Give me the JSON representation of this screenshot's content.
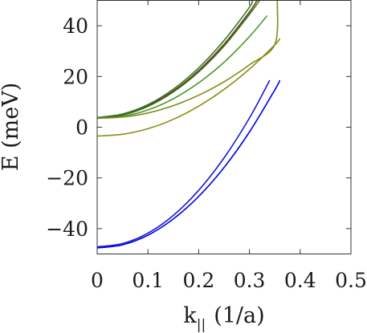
{
  "chart_data": {
    "type": "line",
    "xlabel": "k",
    "xlabel_sub": "||",
    "xlabel_unit": "(1/a)",
    "ylabel": "E (meV)",
    "xlim": [
      0,
      0.5
    ],
    "ylim": [
      -50,
      50
    ],
    "xticks": [
      "0",
      "0.1",
      "0.2",
      "0.3",
      "0.4",
      "0.5"
    ],
    "yticks": [
      "40",
      "20",
      "0",
      "−20",
      "−40"
    ],
    "ytick_values": [
      40,
      20,
      0,
      -20,
      -40
    ],
    "xtick_values": [
      0,
      0.1,
      0.2,
      0.3,
      0.4,
      0.5
    ],
    "grid": false,
    "series": [
      {
        "color": "#1a1acc",
        "x": [
          0,
          0.05,
          0.1,
          0.15,
          0.2,
          0.25,
          0.3,
          0.34
        ],
        "y": [
          -47.2,
          -45.9,
          -41.8,
          -34.8,
          -24.9,
          -12.1,
          3.6,
          18.5
        ]
      },
      {
        "color": "#0000ee",
        "x": [
          0,
          0.05,
          0.1,
          0.15,
          0.2,
          0.25,
          0.3,
          0.35,
          0.36
        ],
        "y": [
          -47.6,
          -46.4,
          -42.6,
          -36.2,
          -27.3,
          -15.9,
          -1.9,
          14.7,
          18.5
        ]
      },
      {
        "color": "#8c8c14",
        "x": [
          0,
          0.05,
          0.1,
          0.15,
          0.2,
          0.25,
          0.3,
          0.35,
          0.36
        ],
        "y": [
          -3.5,
          -2.8,
          -0.6,
          3.1,
          8.3,
          14.9,
          22.9,
          32.5,
          35
        ]
      },
      {
        "color": "#4c9a2a",
        "x": [
          0,
          0.05,
          0.1,
          0.15,
          0.2,
          0.25,
          0.3,
          0.335
        ],
        "y": [
          3.7,
          4.3,
          6.8,
          11.2,
          17.5,
          25.6,
          35.7,
          44
        ]
      },
      {
        "color": "#2f7a1c",
        "x": [
          0,
          0.05,
          0.1,
          0.15,
          0.2,
          0.25,
          0.3,
          0.32
        ],
        "y": [
          3.6,
          4.8,
          8.2,
          13.9,
          21.8,
          32.0,
          44.5,
          50
        ]
      },
      {
        "color": "#7a3a1a",
        "x": [
          0,
          0.05,
          0.1,
          0.15,
          0.2,
          0.25,
          0.3,
          0.315
        ],
        "y": [
          3.7,
          5.0,
          8.5,
          14.3,
          22.4,
          32.7,
          45.4,
          50
        ]
      },
      {
        "color": "#2e7d2e",
        "x": [
          0,
          0.05,
          0.1,
          0.15,
          0.2,
          0.25,
          0.3,
          0.305
        ],
        "y": [
          3.8,
          5.2,
          8.9,
          15.0,
          23.4,
          34.2,
          47.3,
          50
        ]
      },
      {
        "color": "#7d8c1a",
        "x": [
          0,
          0.05,
          0.1,
          0.15,
          0.2,
          0.25,
          0.3,
          0.35,
          0.355
        ],
        "y": [
          3.5,
          4.0,
          5.6,
          8.5,
          12.6,
          17.9,
          24.6,
          32.6,
          50
        ]
      }
    ]
  }
}
